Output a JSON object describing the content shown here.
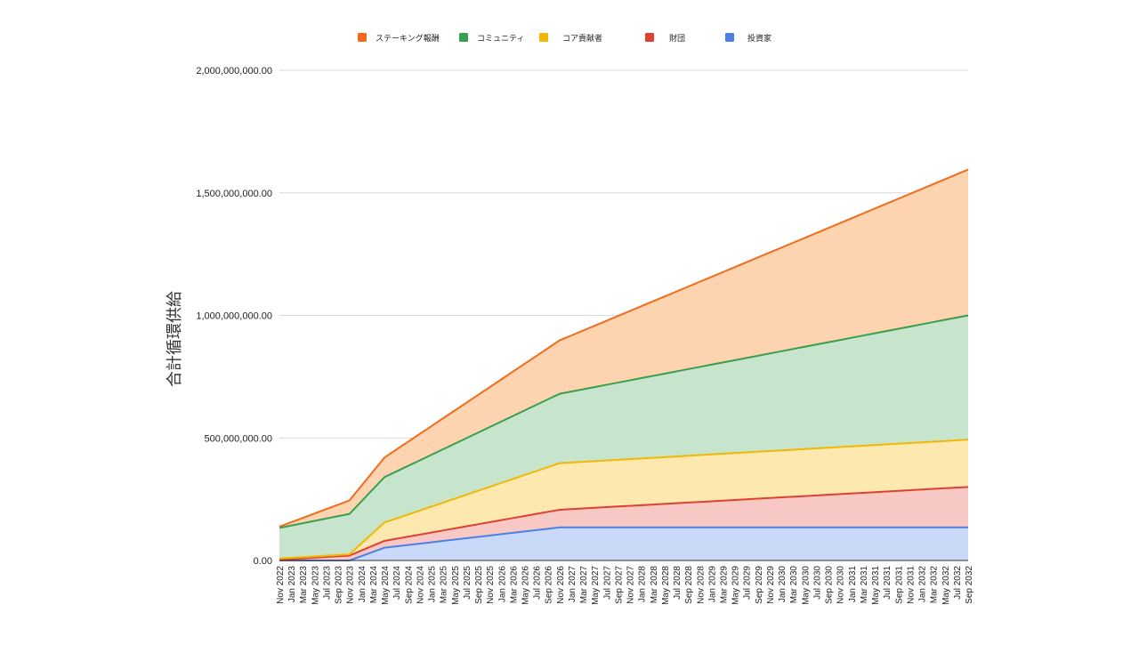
{
  "chart_data": {
    "type": "area",
    "stacked": true,
    "title": "",
    "xlabel": "",
    "ylabel": "合計循環供給",
    "ylim": [
      0,
      2000000000
    ],
    "yticks": [
      0,
      500000000,
      1000000000,
      1500000000,
      2000000000
    ],
    "ytick_labels": [
      "0.00",
      "500,000,000.00",
      "1,000,000,000.00",
      "1,500,000,000.00",
      "2,000,000,000.00"
    ],
    "grid": true,
    "legend_position": "top",
    "x_labels": [
      "Nov 2022",
      "Jan 2023",
      "Mar 2023",
      "May 2023",
      "Jul 2023",
      "Sep 2023",
      "Nov 2023",
      "Jan 2024",
      "Mar 2024",
      "May 2024",
      "Jul 2024",
      "Sep 2024",
      "Nov 2024",
      "Jan 2025",
      "Mar 2025",
      "May 2025",
      "Jul 2025",
      "Sep 2025",
      "Nov 2025",
      "Jan 2026",
      "Mar 2026",
      "May 2026",
      "Jul 2026",
      "Sep 2026",
      "Nov 2026",
      "Jan 2027",
      "Mar 2027",
      "May 2027",
      "Jul 2027",
      "Sep 2027",
      "Nov 2027",
      "Jan 2028",
      "Mar 2028",
      "May 2028",
      "Jul 2028",
      "Sep 2028",
      "Nov 2028",
      "Jan 2029",
      "Mar 2029",
      "May 2029",
      "Jul 2029",
      "Sep 2029",
      "Nov 2029",
      "Jan 2030",
      "Mar 2030",
      "May 2030",
      "Jul 2030",
      "Sep 2030",
      "Nov 2030",
      "Jan 2031",
      "Mar 2031",
      "May 2031",
      "Jul 2031",
      "Sep 2031",
      "Nov 2031",
      "Jan 2032",
      "Mar 2032",
      "May 2032",
      "Jul 2032",
      "Sep 2032"
    ],
    "series": [
      {
        "name": "投資家",
        "line_color": "#4e7fe6",
        "fill_color": "#c9daf8",
        "points": [
          [
            "Nov 2022",
            0
          ],
          [
            "Nov 2023",
            0
          ],
          [
            "May 2024",
            52000000
          ],
          [
            "Nov 2026",
            135000000
          ],
          [
            "Sep 2032",
            135000000
          ]
        ]
      },
      {
        "name": "財団",
        "line_color": "#e0402f",
        "fill_color": "#f8c8c4",
        "points": [
          [
            "Nov 2022",
            3000000
          ],
          [
            "Nov 2023",
            20000000
          ],
          [
            "May 2024",
            80000000
          ],
          [
            "Nov 2026",
            207000000
          ],
          [
            "Sep 2032",
            300000000
          ]
        ]
      },
      {
        "name": "コア貢献者",
        "line_color": "#f2b705",
        "fill_color": "#fde9b0",
        "points": [
          [
            "Nov 2022",
            8000000
          ],
          [
            "Nov 2023",
            25000000
          ],
          [
            "May 2024",
            155000000
          ],
          [
            "Nov 2026",
            397000000
          ],
          [
            "Sep 2032",
            493000000
          ]
        ]
      },
      {
        "name": "コミュニティ",
        "line_color": "#3a9e4f",
        "fill_color": "#c6e5cc",
        "points": [
          [
            "Nov 2022",
            133000000
          ],
          [
            "Nov 2023",
            190000000
          ],
          [
            "May 2024",
            340000000
          ],
          [
            "Nov 2026",
            680000000
          ],
          [
            "Sep 2032",
            1000000000
          ]
        ]
      },
      {
        "name": "ステーキング報酬",
        "line_color": "#f26b1d",
        "fill_color": "#fed4b0",
        "points": [
          [
            "Nov 2022",
            138000000
          ],
          [
            "Nov 2023",
            245000000
          ],
          [
            "May 2024",
            420000000
          ],
          [
            "Nov 2026",
            898000000
          ],
          [
            "Sep 2032",
            1595000000
          ]
        ]
      }
    ],
    "legend_order": [
      "ステーキング報酬",
      "コミュニティ",
      "コア貢献者",
      "財団",
      "投資家"
    ],
    "legend_colors": [
      "#f26b1d",
      "#3a9e4f",
      "#f2b705",
      "#e0402f",
      "#4e7fe6"
    ]
  }
}
